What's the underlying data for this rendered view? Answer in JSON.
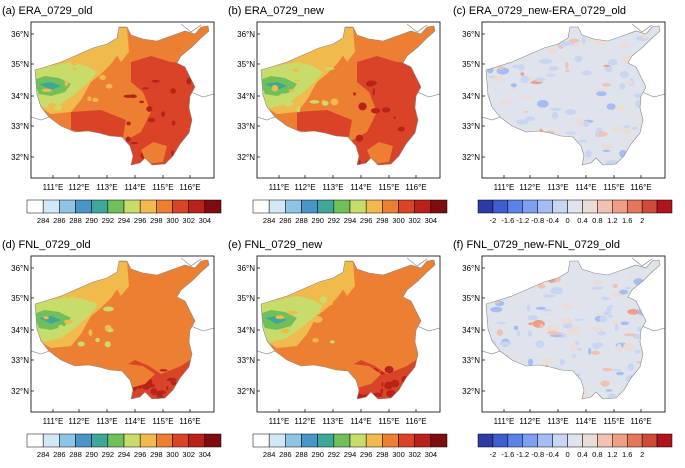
{
  "figure": {
    "panels": [
      {
        "id": "a",
        "title": "(a) ERA_0729_old",
        "kind": "abs",
        "variant": 0
      },
      {
        "id": "b",
        "title": "(b) ERA_0729_new",
        "kind": "abs",
        "variant": 0
      },
      {
        "id": "c",
        "title": "(c) ERA_0729_new-ERA_0729_old",
        "kind": "diff",
        "variant": 0
      },
      {
        "id": "d",
        "title": "(d) FNL_0729_old",
        "kind": "abs",
        "variant": 1
      },
      {
        "id": "e",
        "title": "(e) FNL_0729_new",
        "kind": "abs",
        "variant": 1
      },
      {
        "id": "f",
        "title": "(f) FNL_0729_new-FNL_0729_old",
        "kind": "diff",
        "variant": 1
      }
    ],
    "lat_ticks": [
      "36°N",
      "35°N",
      "34°N",
      "33°N",
      "32°N"
    ],
    "lon_ticks": [
      "111°E",
      "112°E",
      "113°E",
      "114°E",
      "115°E",
      "116°E"
    ],
    "abs_colorbar": {
      "labels": [
        "284",
        "286",
        "288",
        "290",
        "292",
        "294",
        "296",
        "298",
        "300",
        "302",
        "304"
      ],
      "colors": [
        "#ffffff",
        "#d2e9f5",
        "#8fc4e4",
        "#4a94c8",
        "#3fa79a",
        "#6fbf5b",
        "#c7dc6a",
        "#f1ba4c",
        "#ed7f33",
        "#d94428",
        "#b82219",
        "#7f0d0f"
      ]
    },
    "diff_colorbar": {
      "labels": [
        "-2",
        "-1.6",
        "-1.2",
        "-0.8",
        "-0.4",
        "0",
        "0.4",
        "0.8",
        "1.2",
        "1.6",
        "2"
      ],
      "colors": [
        "#2e3ba5",
        "#3e5ed2",
        "#5a82e8",
        "#7fa0ef",
        "#a4bef4",
        "#c8d6f3",
        "#dfe3ec",
        "#ecdcd6",
        "#f3c1b0",
        "#efa084",
        "#e3765c",
        "#cf4a3a",
        "#b0141d"
      ]
    }
  }
}
